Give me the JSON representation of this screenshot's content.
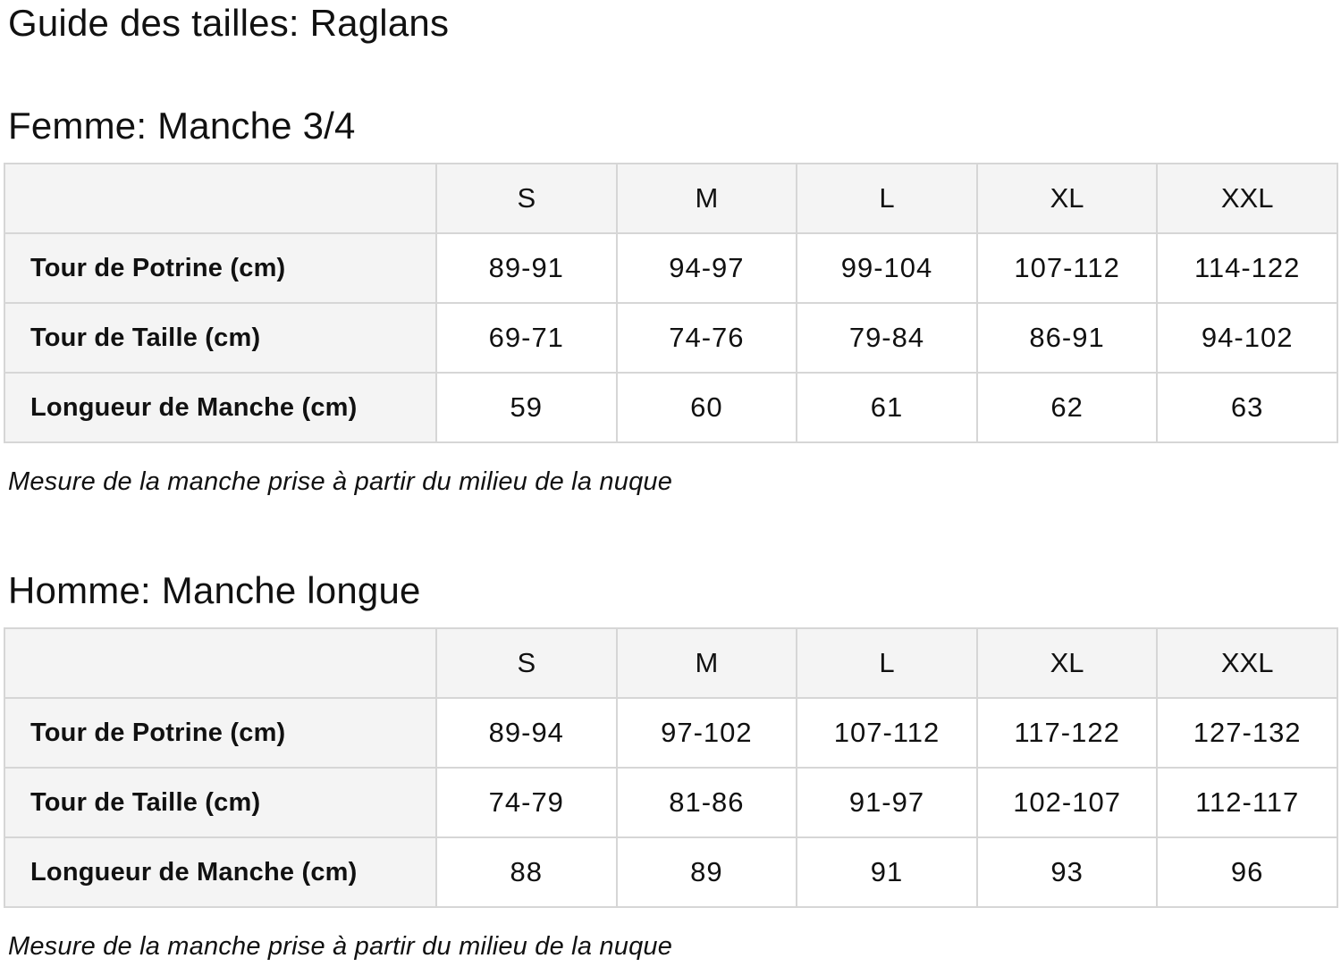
{
  "page": {
    "title": "Guide des tailles: Raglans"
  },
  "colors": {
    "text": "#111111",
    "table_border": "#d6d6d6",
    "header_cell_bg": "#f4f4f4",
    "data_cell_bg": "#ffffff",
    "page_bg": "#ffffff"
  },
  "sections": [
    {
      "heading": "Femme: Manche 3/4",
      "note": "Mesure de la manche prise à partir du milieu de la nuque",
      "table": {
        "columns": [
          "S",
          "M",
          "L",
          "XL",
          "XXL"
        ],
        "rows": [
          {
            "label": "Tour de Potrine (cm)",
            "values": [
              "89-91",
              "94-97",
              "99-104",
              "107-112",
              "114-122"
            ]
          },
          {
            "label": "Tour de Taille (cm)",
            "values": [
              "69-71",
              "74-76",
              "79-84",
              "86-91",
              "94-102"
            ]
          },
          {
            "label": "Longueur de Manche (cm)",
            "values": [
              "59",
              "60",
              "61",
              "62",
              "63"
            ]
          }
        ]
      }
    },
    {
      "heading": "Homme: Manche longue",
      "note": "Mesure de la manche prise à partir du milieu de la nuque",
      "table": {
        "columns": [
          "S",
          "M",
          "L",
          "XL",
          "XXL"
        ],
        "rows": [
          {
            "label": "Tour de Potrine (cm)",
            "values": [
              "89-94",
              "97-102",
              "107-112",
              "117-122",
              "127-132"
            ]
          },
          {
            "label": "Tour de Taille (cm)",
            "values": [
              "74-79",
              "81-86",
              "91-97",
              "102-107",
              "112-117"
            ]
          },
          {
            "label": "Longueur de Manche (cm)",
            "values": [
              "88",
              "89",
              "91",
              "93",
              "96"
            ]
          }
        ]
      }
    }
  ]
}
